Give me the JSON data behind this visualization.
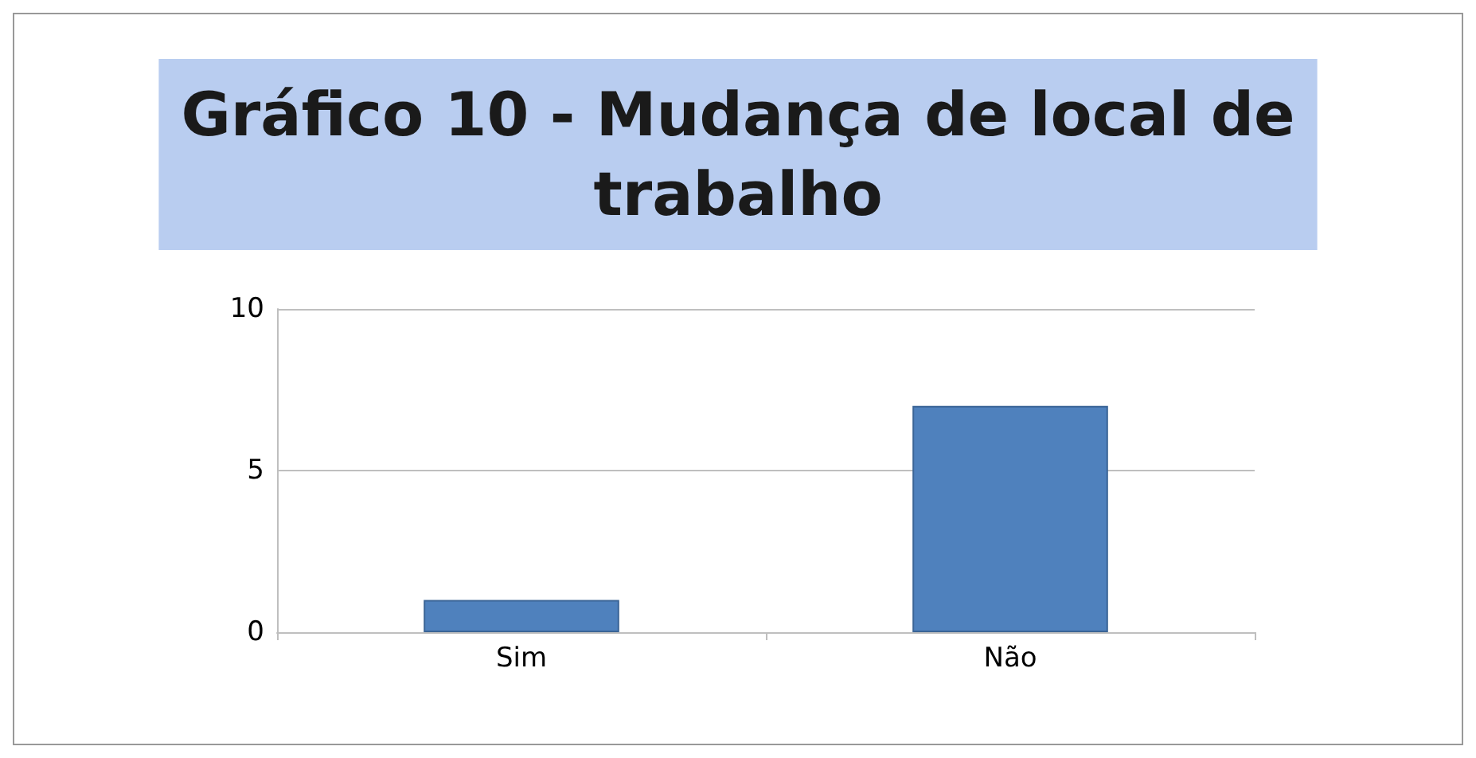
{
  "chart_data": {
    "type": "bar",
    "title": "Gráfico 10 - Mudança de local de\ntrabalho",
    "categories": [
      "Sim",
      "Não"
    ],
    "values": [
      1,
      7
    ],
    "color": "#4f81bd",
    "ylim": [
      0,
      10
    ],
    "yticks": [
      0,
      5,
      10
    ],
    "grid": "y"
  }
}
